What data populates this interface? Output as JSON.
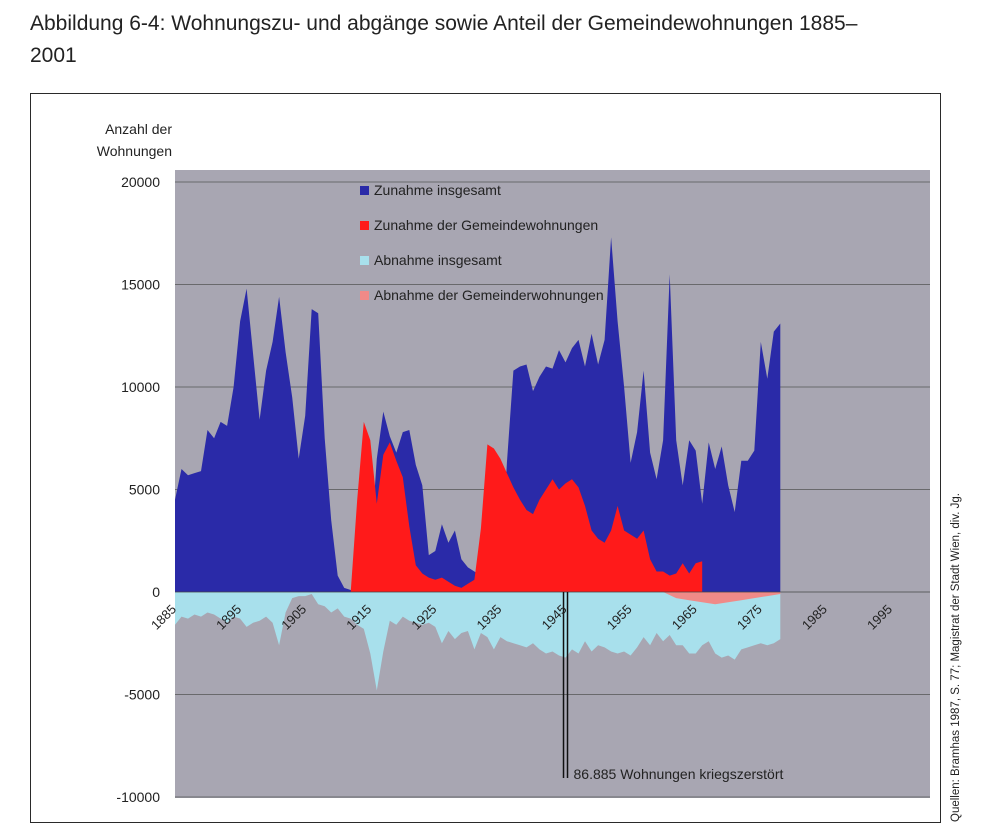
{
  "figure": {
    "title": "Abbildung 6-4: Wohnungszu- und abgänge sowie Anteil der Gemeindewohnungen 1885–2001",
    "source": "Quellen: Bramhas 1987, S. 77; Magistrat der Stadt Wien, div. Jg."
  },
  "chart_data": {
    "type": "area",
    "title": "Abbildung 6-4: Wohnungszu- und abgänge sowie Anteil der Gemeindewohnungen 1885–2001",
    "xlabel": "",
    "ylabel": "Anzahl der Wohnungen",
    "ylim": [
      -10000,
      20000
    ],
    "xlim": [
      1885,
      2001
    ],
    "yticks": [
      20000,
      15000,
      10000,
      5000,
      0,
      -5000,
      -10000
    ],
    "xticks": [
      1885,
      1895,
      1905,
      1915,
      1925,
      1935,
      1945,
      1955,
      1965,
      1975,
      1985,
      1995
    ],
    "grid": true,
    "legend_position": "top-left",
    "background": "#a8a6b2",
    "series": [
      {
        "name": "Zunahme insgesamt",
        "color": "#2a2aa8",
        "points": [
          [
            1885,
            4500
          ],
          [
            1886,
            6000
          ],
          [
            1887,
            5700
          ],
          [
            1888,
            5800
          ],
          [
            1889,
            5900
          ],
          [
            1890,
            7900
          ],
          [
            1891,
            7500
          ],
          [
            1892,
            8300
          ],
          [
            1893,
            8100
          ],
          [
            1894,
            10000
          ],
          [
            1895,
            13200
          ],
          [
            1896,
            14800
          ],
          [
            1897,
            11600
          ],
          [
            1898,
            8400
          ],
          [
            1899,
            10800
          ],
          [
            1900,
            12200
          ],
          [
            1901,
            14400
          ],
          [
            1902,
            11700
          ],
          [
            1903,
            9500
          ],
          [
            1904,
            6500
          ],
          [
            1905,
            8600
          ],
          [
            1906,
            13800
          ],
          [
            1907,
            13600
          ],
          [
            1908,
            7500
          ],
          [
            1909,
            3500
          ],
          [
            1910,
            800
          ],
          [
            1911,
            200
          ],
          [
            1912,
            100
          ],
          [
            1913,
            200
          ],
          [
            1914,
            400
          ],
          [
            1915,
            1800
          ],
          [
            1916,
            6500
          ],
          [
            1917,
            8800
          ],
          [
            1918,
            7600
          ],
          [
            1919,
            6800
          ],
          [
            1920,
            7800
          ],
          [
            1921,
            7900
          ],
          [
            1922,
            6200
          ],
          [
            1923,
            5200
          ],
          [
            1924,
            1800
          ],
          [
            1925,
            2000
          ],
          [
            1926,
            3300
          ],
          [
            1927,
            2400
          ],
          [
            1928,
            3000
          ],
          [
            1929,
            1600
          ],
          [
            1930,
            1200
          ],
          [
            1931,
            1000
          ],
          [
            1932,
            800
          ],
          [
            1933,
            500
          ],
          [
            1934,
            200
          ],
          [
            1935,
            400
          ],
          [
            1936,
            6300
          ],
          [
            1937,
            10800
          ],
          [
            1938,
            11000
          ],
          [
            1939,
            11100
          ],
          [
            1940,
            9800
          ],
          [
            1941,
            10500
          ],
          [
            1942,
            11000
          ],
          [
            1943,
            10900
          ],
          [
            1944,
            11800
          ],
          [
            1945,
            11200
          ],
          [
            1946,
            11900
          ],
          [
            1947,
            12300
          ],
          [
            1948,
            11000
          ],
          [
            1949,
            12600
          ],
          [
            1950,
            11100
          ],
          [
            1951,
            12300
          ],
          [
            1952,
            17300
          ],
          [
            1953,
            13200
          ],
          [
            1954,
            10000
          ],
          [
            1955,
            6300
          ],
          [
            1956,
            7800
          ],
          [
            1957,
            10800
          ],
          [
            1958,
            6800
          ],
          [
            1959,
            5500
          ],
          [
            1960,
            7400
          ],
          [
            1961,
            15500
          ],
          [
            1962,
            7400
          ],
          [
            1963,
            5200
          ],
          [
            1964,
            7400
          ],
          [
            1965,
            6900
          ],
          [
            1966,
            4300
          ],
          [
            1967,
            7300
          ],
          [
            1968,
            6000
          ],
          [
            1969,
            7100
          ],
          [
            1970,
            5200
          ],
          [
            1971,
            3900
          ],
          [
            1972,
            6400
          ],
          [
            1973,
            6400
          ],
          [
            1974,
            6900
          ],
          [
            1975,
            12200
          ],
          [
            1976,
            10400
          ],
          [
            1977,
            12700
          ],
          [
            1978,
            13100
          ]
        ]
      },
      {
        "name": "Zunahme der Gemeindewohnungen",
        "color": "#ff1a1a",
        "points": [
          [
            1910,
            0
          ],
          [
            1912,
            0
          ],
          [
            1913,
            4500
          ],
          [
            1914,
            8300
          ],
          [
            1915,
            7400
          ],
          [
            1916,
            4300
          ],
          [
            1917,
            6700
          ],
          [
            1918,
            7300
          ],
          [
            1919,
            6400
          ],
          [
            1920,
            5600
          ],
          [
            1921,
            3200
          ],
          [
            1922,
            1300
          ],
          [
            1923,
            900
          ],
          [
            1924,
            700
          ],
          [
            1925,
            600
          ],
          [
            1926,
            700
          ],
          [
            1927,
            500
          ],
          [
            1928,
            300
          ],
          [
            1929,
            200
          ],
          [
            1930,
            400
          ],
          [
            1931,
            600
          ],
          [
            1932,
            3100
          ],
          [
            1933,
            7200
          ],
          [
            1934,
            7000
          ],
          [
            1935,
            6500
          ],
          [
            1936,
            5800
          ],
          [
            1937,
            5100
          ],
          [
            1938,
            4500
          ],
          [
            1939,
            4000
          ],
          [
            1940,
            3800
          ],
          [
            1941,
            4500
          ],
          [
            1942,
            5000
          ],
          [
            1943,
            5500
          ],
          [
            1944,
            5000
          ],
          [
            1945,
            5300
          ],
          [
            1946,
            5500
          ],
          [
            1947,
            5100
          ],
          [
            1948,
            4200
          ],
          [
            1949,
            3000
          ],
          [
            1950,
            2600
          ],
          [
            1951,
            2400
          ],
          [
            1952,
            3000
          ],
          [
            1953,
            4200
          ],
          [
            1954,
            3000
          ],
          [
            1955,
            2800
          ],
          [
            1956,
            2600
          ],
          [
            1957,
            3000
          ],
          [
            1958,
            1600
          ],
          [
            1959,
            1000
          ],
          [
            1960,
            1000
          ],
          [
            1961,
            800
          ],
          [
            1962,
            900
          ],
          [
            1963,
            1400
          ],
          [
            1964,
            900
          ],
          [
            1965,
            1400
          ],
          [
            1966,
            1500
          ]
        ]
      },
      {
        "name": "Abnahme insgesamt",
        "color": "#a8e0ec",
        "points": [
          [
            1885,
            -1600
          ],
          [
            1886,
            -1200
          ],
          [
            1887,
            -1300
          ],
          [
            1888,
            -1100
          ],
          [
            1889,
            -1200
          ],
          [
            1890,
            -1000
          ],
          [
            1891,
            -1100
          ],
          [
            1892,
            -1300
          ],
          [
            1893,
            -1500
          ],
          [
            1894,
            -1200
          ],
          [
            1895,
            -1300
          ],
          [
            1896,
            -1700
          ],
          [
            1897,
            -1500
          ],
          [
            1898,
            -1400
          ],
          [
            1899,
            -1200
          ],
          [
            1900,
            -1500
          ],
          [
            1901,
            -2600
          ],
          [
            1902,
            -1000
          ],
          [
            1903,
            -300
          ],
          [
            1904,
            -200
          ],
          [
            1905,
            -200
          ],
          [
            1906,
            -100
          ],
          [
            1907,
            -600
          ],
          [
            1908,
            -700
          ],
          [
            1909,
            -1000
          ],
          [
            1910,
            -800
          ],
          [
            1911,
            -1200
          ],
          [
            1912,
            -1300
          ],
          [
            1913,
            -1600
          ],
          [
            1914,
            -1800
          ],
          [
            1915,
            -3000
          ],
          [
            1916,
            -4800
          ],
          [
            1917,
            -2900
          ],
          [
            1918,
            -1400
          ],
          [
            1919,
            -1600
          ],
          [
            1920,
            -1200
          ],
          [
            1921,
            -1400
          ],
          [
            1922,
            -1500
          ],
          [
            1923,
            -1600
          ],
          [
            1924,
            -1500
          ],
          [
            1925,
            -1700
          ],
          [
            1926,
            -2500
          ],
          [
            1927,
            -1900
          ],
          [
            1928,
            -2300
          ],
          [
            1929,
            -2000
          ],
          [
            1930,
            -1900
          ],
          [
            1931,
            -2800
          ],
          [
            1932,
            -2000
          ],
          [
            1933,
            -2200
          ],
          [
            1934,
            -2800
          ],
          [
            1935,
            -2200
          ],
          [
            1936,
            -2400
          ],
          [
            1937,
            -2500
          ],
          [
            1938,
            -2600
          ],
          [
            1939,
            -2700
          ],
          [
            1940,
            -2500
          ],
          [
            1941,
            -2800
          ],
          [
            1942,
            -3000
          ],
          [
            1943,
            -2900
          ],
          [
            1944,
            -3100
          ],
          [
            1945,
            -3200
          ],
          [
            1946,
            -2800
          ],
          [
            1947,
            -3000
          ],
          [
            1948,
            -2400
          ],
          [
            1949,
            -2900
          ],
          [
            1950,
            -2600
          ],
          [
            1951,
            -2700
          ],
          [
            1952,
            -2900
          ],
          [
            1953,
            -3000
          ],
          [
            1954,
            -2900
          ],
          [
            1955,
            -3100
          ],
          [
            1956,
            -2700
          ],
          [
            1957,
            -2200
          ],
          [
            1958,
            -2600
          ],
          [
            1959,
            -2000
          ],
          [
            1960,
            -2400
          ],
          [
            1961,
            -2100
          ],
          [
            1962,
            -2600
          ],
          [
            1963,
            -2600
          ],
          [
            1964,
            -3000
          ],
          [
            1965,
            -3000
          ],
          [
            1966,
            -2600
          ],
          [
            1967,
            -2400
          ],
          [
            1968,
            -3000
          ],
          [
            1969,
            -3200
          ],
          [
            1970,
            -3100
          ],
          [
            1971,
            -3300
          ],
          [
            1972,
            -2800
          ],
          [
            1973,
            -2700
          ],
          [
            1974,
            -2600
          ],
          [
            1975,
            -2500
          ],
          [
            1976,
            -2600
          ],
          [
            1977,
            -2500
          ],
          [
            1978,
            -2300
          ]
        ]
      },
      {
        "name": "Abnahme der Gemeinderwohnungen",
        "color": "#f08a88",
        "points": [
          [
            1960,
            0
          ],
          [
            1962,
            -300
          ],
          [
            1964,
            -400
          ],
          [
            1966,
            -500
          ],
          [
            1968,
            -600
          ],
          [
            1970,
            -500
          ],
          [
            1972,
            -400
          ],
          [
            1974,
            -300
          ],
          [
            1976,
            -200
          ],
          [
            1978,
            -100
          ]
        ]
      }
    ],
    "annotations": [
      {
        "text": "86.885 Wohnungen kriegszerstört",
        "x": 1945
      }
    ]
  }
}
